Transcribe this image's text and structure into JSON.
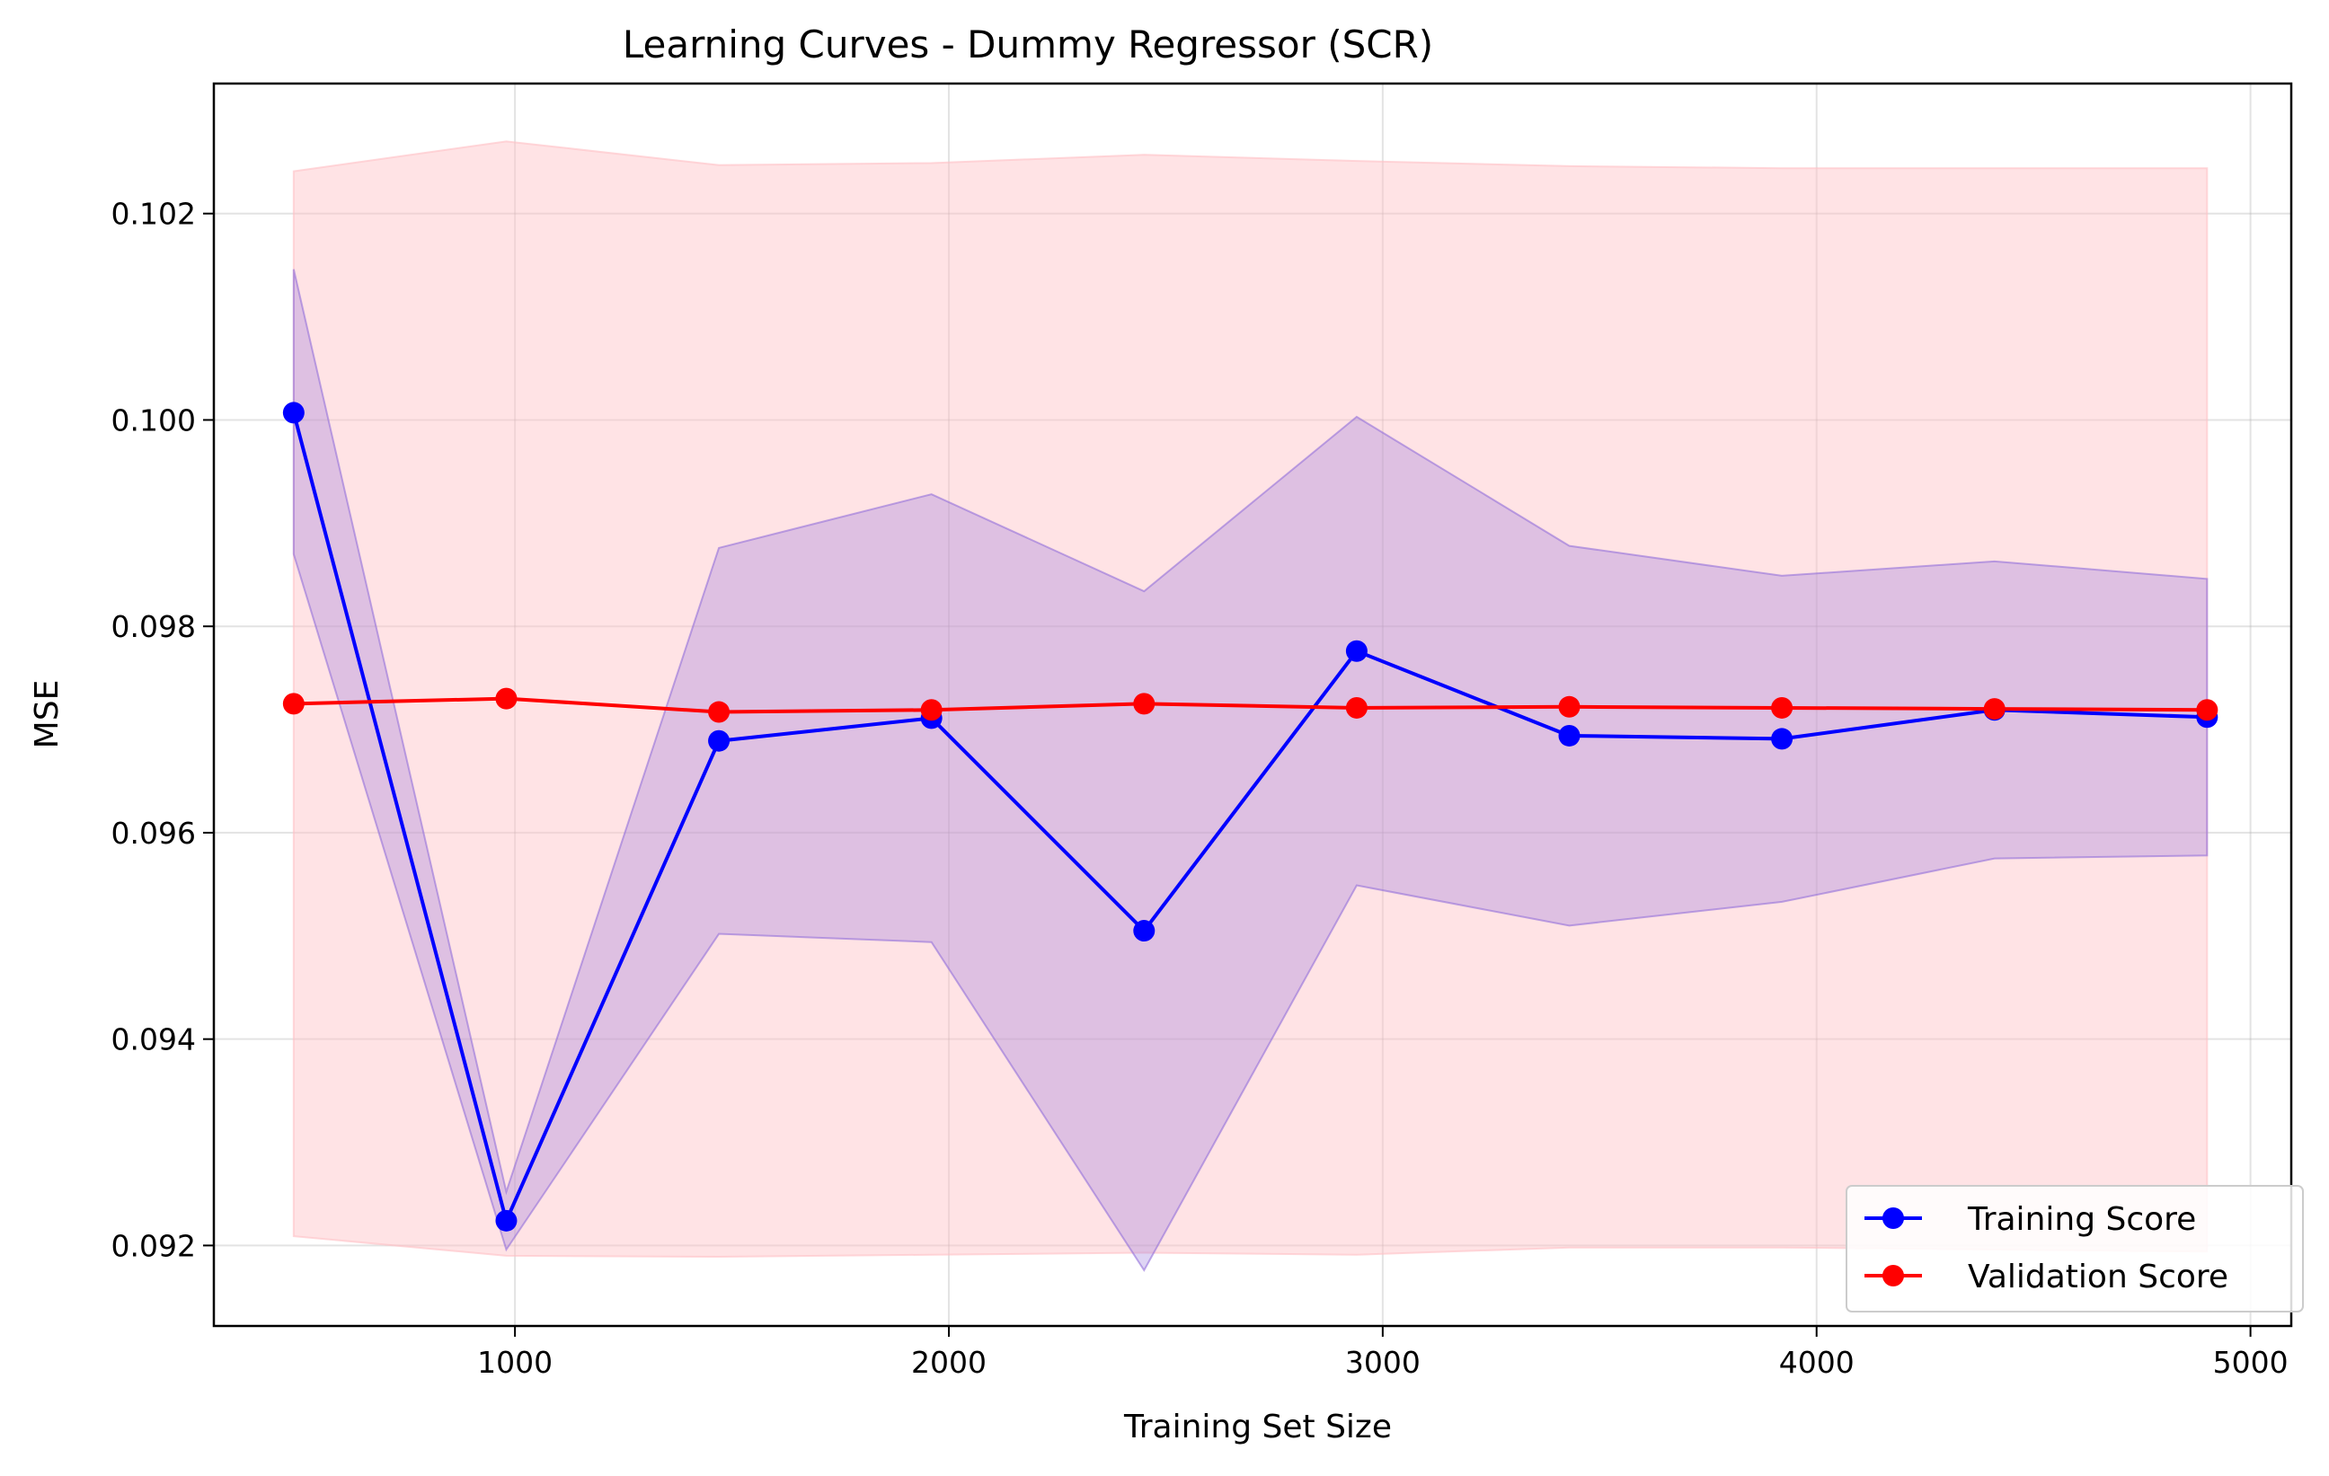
{
  "chart_data": {
    "type": "line",
    "title": "Learning Curves - Dummy Regressor (SCR)",
    "xlabel": "Training Set Size",
    "ylabel": "MSE",
    "xlim": [
      306,
      5094
    ],
    "ylim": [
      0.09122,
      0.10326
    ],
    "grid": true,
    "legend_position": "lower right",
    "x": [
      490,
      980,
      1470,
      1960,
      2450,
      2940,
      3430,
      3920,
      4410,
      4900
    ],
    "series": [
      {
        "name": "Training Score",
        "color": "#0000ff",
        "band_color": "#9370db",
        "values": [
          0.10007,
          0.09224,
          0.09689,
          0.09711,
          0.09505,
          0.09776,
          0.09694,
          0.09691,
          0.09719,
          0.09712
        ],
        "band_upper": [
          0.10146,
          0.09252,
          0.09876,
          0.09928,
          0.09834,
          0.10003,
          0.09878,
          0.09849,
          0.09863,
          0.09846
        ],
        "band_lower": [
          0.0987,
          0.09196,
          0.09502,
          0.09494,
          0.09176,
          0.09549,
          0.0951,
          0.09533,
          0.09575,
          0.09578
        ]
      },
      {
        "name": "Validation Score",
        "color": "#ff0000",
        "band_color": "#ffc0c5",
        "values": [
          0.09725,
          0.0973,
          0.09717,
          0.09719,
          0.09725,
          0.09721,
          0.09722,
          0.09721,
          0.0972,
          0.09719
        ],
        "band_upper": [
          0.10241,
          0.1027,
          0.10247,
          0.10249,
          0.10257,
          0.10251,
          0.10246,
          0.10244,
          0.10244,
          0.10244
        ],
        "band_lower": [
          0.09209,
          0.0919,
          0.09189,
          0.09191,
          0.09193,
          0.09191,
          0.09198,
          0.09198,
          0.09196,
          0.09194
        ]
      }
    ],
    "x_ticks": [
      {
        "value": 1000,
        "label": "1000"
      },
      {
        "value": 2000,
        "label": "2000"
      },
      {
        "value": 3000,
        "label": "3000"
      },
      {
        "value": 4000,
        "label": "4000"
      },
      {
        "value": 5000,
        "label": "5000"
      }
    ],
    "y_ticks": [
      {
        "value": 0.092,
        "label": "0.092"
      },
      {
        "value": 0.094,
        "label": "0.094"
      },
      {
        "value": 0.096,
        "label": "0.096"
      },
      {
        "value": 0.098,
        "label": "0.098"
      },
      {
        "value": 0.1,
        "label": "0.100"
      },
      {
        "value": 0.102,
        "label": "0.102"
      }
    ]
  }
}
